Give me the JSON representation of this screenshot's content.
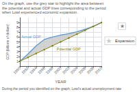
{
  "chart_data": {
    "type": "line",
    "x": [
      1990,
      1992,
      1994,
      1996,
      1998,
      2000,
      2002,
      2004,
      2006,
      2008,
      2010
    ],
    "series": [
      {
        "name": "Actual GDP",
        "color": "#5b9bd5",
        "values": [
          1.0,
          2.5,
          4.2,
          5.5,
          6.0,
          6.4,
          6.7,
          7.1,
          7.6,
          8.2,
          9.0
        ]
      },
      {
        "name": "Potential GDP",
        "color": "#808000",
        "marker": "circle",
        "values": [
          1.0,
          1.8,
          2.6,
          3.4,
          4.2,
          5.0,
          5.8,
          6.6,
          7.4,
          8.2,
          9.0
        ]
      },
      {
        "name": "Expansion",
        "type": "area",
        "color": "#c8c8c8",
        "marker": "star"
      }
    ],
    "xlabel": "YEAR",
    "ylabel": "GDP (billions of dollars)",
    "xlim": [
      1990,
      2010
    ],
    "xticks": [
      1990,
      1992,
      1994,
      1996,
      1998,
      2000,
      2002,
      2004,
      2006,
      2008,
      2010
    ],
    "ylim": [
      0,
      10
    ],
    "yticks": [
      1,
      2,
      3,
      4,
      5,
      6,
      7,
      8,
      9
    ],
    "grid": true,
    "legend": "right",
    "annotations": [
      "On the graph, use the grey star to highlight the area between the potential and actual GDP lines corresponding to the period when Lowl experienced economic expansion.",
      "During the period you identified on the graph, Lowl's actual unemployment rate",
      "★"
    ]
  }
}
